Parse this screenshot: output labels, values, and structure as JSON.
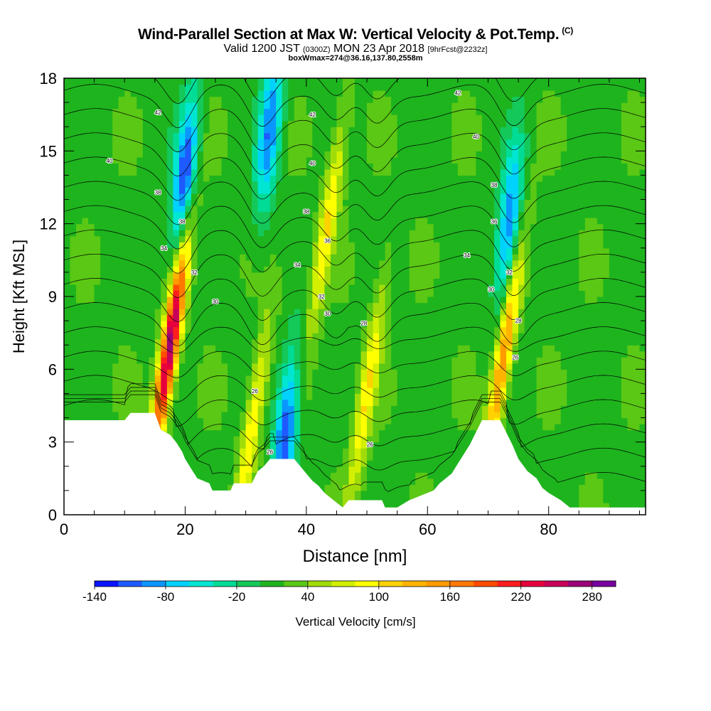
{
  "header": {
    "title": "Wind-Parallel Section at Max W: Vertical Velocity & Pot.Temp.",
    "title_mark": "(C)",
    "valid_prefix": "Valid 1200 JST",
    "valid_small": "(0300Z)",
    "valid_date": "MON 23 Apr 2018",
    "valid_fcst": "[9hrFcst@2232z]",
    "box_info": "boxWmax=274@36.16,137.80,2558m"
  },
  "chart_data": {
    "type": "heatmap",
    "xlabel": "Distance [nm]",
    "ylabel": "Height [Kft MSL]",
    "xlim": [
      0,
      96
    ],
    "ylim": [
      0,
      18
    ],
    "xticks": [
      0,
      20,
      40,
      60,
      80
    ],
    "yticks": [
      0,
      3,
      6,
      9,
      12,
      15,
      18
    ],
    "colorbar": {
      "label": "Vertical Velocity [cm/s]",
      "ticks": [
        "-140",
        "-80",
        "-20",
        "40",
        "100",
        "160",
        "220",
        "280"
      ],
      "levels": [
        -140,
        -120,
        -100,
        -80,
        -60,
        -40,
        -20,
        0,
        20,
        40,
        60,
        80,
        100,
        120,
        140,
        160,
        180,
        200,
        220,
        240,
        260,
        280
      ],
      "colors": [
        "#0a14ff",
        "#1e5aff",
        "#0a96ff",
        "#00d2ff",
        "#00e6d2",
        "#00dc96",
        "#14c85a",
        "#1eb41e",
        "#5ac814",
        "#a0dc0a",
        "#d2f000",
        "#ffff00",
        "#ffd200",
        "#ffb400",
        "#ff9b00",
        "#ff7800",
        "#ff4b00",
        "#ff1e1e",
        "#e6003c",
        "#c8005a",
        "#9b0078",
        "#7800a0"
      ]
    },
    "updrafts": [
      {
        "x": 17.5,
        "peak_cm_s": 274,
        "z_kft": 7
      },
      {
        "x": 31,
        "peak_cm_s": 100,
        "z_kft": 3.5
      },
      {
        "x": 43.5,
        "peak_cm_s": 100,
        "z_kft": 12
      },
      {
        "x": 50,
        "peak_cm_s": 100,
        "z_kft": 5
      },
      {
        "x": 72.5,
        "peak_cm_s": 160,
        "z_kft": 6.5
      }
    ],
    "downdrafts": [
      {
        "x": 20,
        "peak_cm_s": -120,
        "z_kft": 14
      },
      {
        "x": 36.5,
        "peak_cm_s": -120,
        "z_kft": 3.2
      },
      {
        "x": 34,
        "peak_cm_s": -100,
        "z_kft": 16
      },
      {
        "x": 73.5,
        "peak_cm_s": -100,
        "z_kft": 12
      }
    ],
    "terrain_kft": [
      [
        0,
        3.9
      ],
      [
        10,
        3.9
      ],
      [
        11,
        4.2
      ],
      [
        15,
        4.2
      ],
      [
        16,
        3.5
      ],
      [
        17.5,
        3.3
      ],
      [
        18.5,
        3.0
      ],
      [
        19.5,
        2.6
      ],
      [
        20,
        2.3
      ],
      [
        21,
        1.9
      ],
      [
        22,
        1.5
      ],
      [
        24,
        1.3
      ],
      [
        24.5,
        1.0
      ],
      [
        27.5,
        1.0
      ],
      [
        28,
        1.3
      ],
      [
        31,
        1.3
      ],
      [
        32,
        1.8
      ],
      [
        33,
        2.0
      ],
      [
        34,
        2.3
      ],
      [
        38,
        2.3
      ],
      [
        39,
        2.0
      ],
      [
        40,
        1.7
      ],
      [
        41,
        1.4
      ],
      [
        42,
        1.2
      ],
      [
        43,
        0.9
      ],
      [
        44,
        0.7
      ],
      [
        45,
        0.5
      ],
      [
        46,
        0.3
      ],
      [
        47,
        0.6
      ],
      [
        52.5,
        0.6
      ],
      [
        53,
        0.3
      ],
      [
        55,
        0.3
      ],
      [
        57,
        0.6
      ],
      [
        60,
        0.9
      ],
      [
        61,
        1.0
      ],
      [
        62,
        1.3
      ],
      [
        64,
        1.7
      ],
      [
        65.5,
        2.3
      ],
      [
        67,
        2.9
      ],
      [
        68,
        3.4
      ],
      [
        69,
        3.9
      ],
      [
        72,
        3.9
      ],
      [
        73,
        3.4
      ],
      [
        74,
        2.9
      ],
      [
        75,
        2.3
      ],
      [
        76.5,
        1.8
      ],
      [
        78,
        1.5
      ],
      [
        79,
        1.1
      ],
      [
        80,
        0.9
      ],
      [
        82,
        0.6
      ],
      [
        83.5,
        0.3
      ],
      [
        96,
        0.3
      ]
    ],
    "contour_labels": [
      {
        "text": "40",
        "x": 7.5,
        "y": 14.6
      },
      {
        "text": "42",
        "x": 15.5,
        "y": 16.6
      },
      {
        "text": "38",
        "x": 15.5,
        "y": 13.3
      },
      {
        "text": "38",
        "x": 19.5,
        "y": 12.1
      },
      {
        "text": "34",
        "x": 16.5,
        "y": 11.0
      },
      {
        "text": "32",
        "x": 21.5,
        "y": 10.0
      },
      {
        "text": "30",
        "x": 25,
        "y": 8.8
      },
      {
        "text": "42",
        "x": 41,
        "y": 16.5
      },
      {
        "text": "40",
        "x": 41,
        "y": 14.5
      },
      {
        "text": "38",
        "x": 40,
        "y": 12.5
      },
      {
        "text": "36",
        "x": 43.5,
        "y": 11.3
      },
      {
        "text": "34",
        "x": 38.5,
        "y": 10.3
      },
      {
        "text": "32",
        "x": 42.5,
        "y": 9.0
      },
      {
        "text": "30",
        "x": 43.5,
        "y": 8.3
      },
      {
        "text": "28",
        "x": 49.5,
        "y": 7.9
      },
      {
        "text": "26",
        "x": 31.5,
        "y": 5.1
      },
      {
        "text": "26",
        "x": 34,
        "y": 2.6
      },
      {
        "text": "26",
        "x": 50.5,
        "y": 2.9
      },
      {
        "text": "42",
        "x": 65,
        "y": 17.4
      },
      {
        "text": "40",
        "x": 68,
        "y": 15.6
      },
      {
        "text": "38",
        "x": 71,
        "y": 13.6
      },
      {
        "text": "36",
        "x": 71,
        "y": 12.1
      },
      {
        "text": "34",
        "x": 66.5,
        "y": 10.7
      },
      {
        "text": "32",
        "x": 73.5,
        "y": 10.0
      },
      {
        "text": "30",
        "x": 70.5,
        "y": 9.3
      },
      {
        "text": "28",
        "x": 75,
        "y": 8.0
      },
      {
        "text": "26",
        "x": 74.5,
        "y": 6.5
      }
    ],
    "theta_levels": [
      26,
      27,
      28,
      29,
      30,
      31,
      32,
      33,
      34,
      35,
      36,
      37,
      38,
      39,
      40,
      41,
      42,
      43
    ]
  }
}
